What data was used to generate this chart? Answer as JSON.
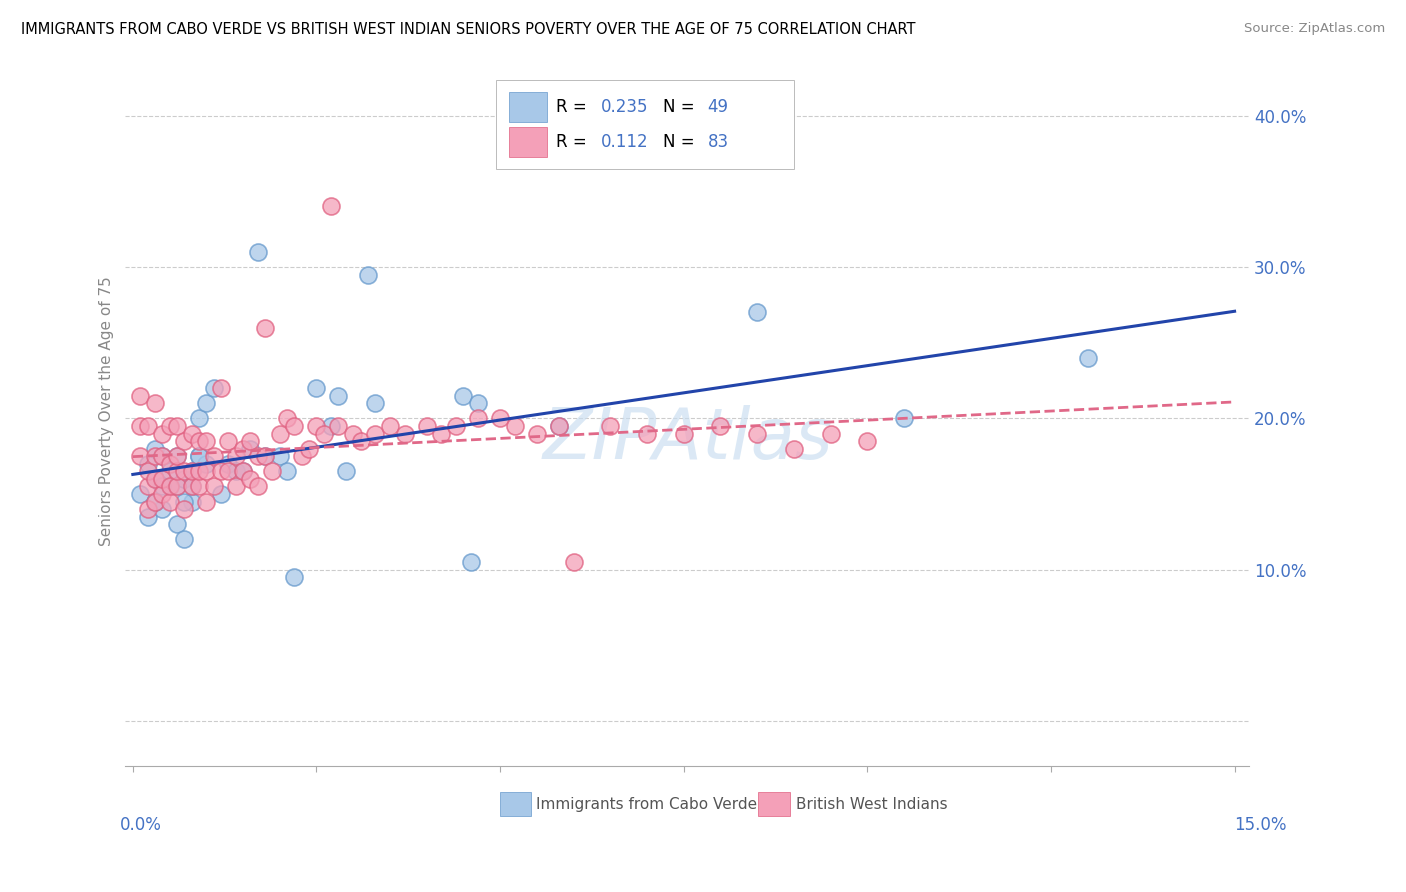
{
  "title": "IMMIGRANTS FROM CABO VERDE VS BRITISH WEST INDIAN SENIORS POVERTY OVER THE AGE OF 75 CORRELATION CHART",
  "source": "Source: ZipAtlas.com",
  "ylabel": "Seniors Poverty Over the Age of 75",
  "y_ticks": [
    0.0,
    0.1,
    0.2,
    0.3,
    0.4
  ],
  "y_tick_labels": [
    "",
    "10.0%",
    "20.0%",
    "30.0%",
    "40.0%"
  ],
  "watermark": "ZIPAtlas",
  "series1_color": "#a8c8e8",
  "series2_color": "#f4a0b8",
  "series1_edge": "#6699cc",
  "series2_edge": "#e06080",
  "trendline1_color": "#2244aa",
  "trendline2_color": "#e06888",
  "cabo_verde_x": [
    0.001,
    0.002,
    0.002,
    0.003,
    0.003,
    0.004,
    0.004,
    0.005,
    0.005,
    0.006,
    0.006,
    0.007,
    0.007,
    0.008,
    0.008,
    0.009,
    0.009,
    0.01,
    0.01,
    0.011,
    0.012,
    0.013,
    0.014,
    0.015,
    0.016,
    0.017,
    0.018,
    0.02,
    0.021,
    0.022,
    0.025,
    0.027,
    0.028,
    0.029,
    0.032,
    0.033,
    0.045,
    0.046,
    0.047,
    0.058,
    0.085,
    0.105,
    0.13,
    0.003,
    0.004,
    0.006,
    0.007,
    0.008,
    0.009
  ],
  "cabo_verde_y": [
    0.15,
    0.135,
    0.17,
    0.16,
    0.18,
    0.14,
    0.175,
    0.155,
    0.165,
    0.13,
    0.155,
    0.12,
    0.16,
    0.145,
    0.165,
    0.175,
    0.2,
    0.17,
    0.21,
    0.22,
    0.15,
    0.17,
    0.165,
    0.165,
    0.18,
    0.31,
    0.175,
    0.175,
    0.165,
    0.095,
    0.22,
    0.195,
    0.215,
    0.165,
    0.295,
    0.21,
    0.215,
    0.105,
    0.21,
    0.195,
    0.27,
    0.2,
    0.24,
    0.145,
    0.155,
    0.175,
    0.145,
    0.155,
    0.175
  ],
  "bwi_x": [
    0.001,
    0.001,
    0.001,
    0.002,
    0.002,
    0.002,
    0.002,
    0.003,
    0.003,
    0.003,
    0.003,
    0.004,
    0.004,
    0.004,
    0.004,
    0.005,
    0.005,
    0.005,
    0.005,
    0.006,
    0.006,
    0.006,
    0.006,
    0.007,
    0.007,
    0.007,
    0.008,
    0.008,
    0.008,
    0.009,
    0.009,
    0.009,
    0.01,
    0.01,
    0.01,
    0.011,
    0.011,
    0.012,
    0.012,
    0.013,
    0.013,
    0.014,
    0.014,
    0.015,
    0.015,
    0.016,
    0.016,
    0.017,
    0.017,
    0.018,
    0.018,
    0.019,
    0.02,
    0.021,
    0.022,
    0.023,
    0.024,
    0.025,
    0.026,
    0.027,
    0.028,
    0.03,
    0.031,
    0.033,
    0.035,
    0.037,
    0.04,
    0.042,
    0.044,
    0.047,
    0.05,
    0.052,
    0.055,
    0.058,
    0.06,
    0.065,
    0.07,
    0.075,
    0.08,
    0.085,
    0.09,
    0.095,
    0.1
  ],
  "bwi_y": [
    0.175,
    0.195,
    0.215,
    0.14,
    0.155,
    0.165,
    0.195,
    0.145,
    0.16,
    0.175,
    0.21,
    0.15,
    0.16,
    0.175,
    0.19,
    0.145,
    0.155,
    0.17,
    0.195,
    0.155,
    0.165,
    0.175,
    0.195,
    0.14,
    0.165,
    0.185,
    0.155,
    0.165,
    0.19,
    0.155,
    0.165,
    0.185,
    0.145,
    0.165,
    0.185,
    0.155,
    0.175,
    0.165,
    0.22,
    0.165,
    0.185,
    0.155,
    0.175,
    0.165,
    0.18,
    0.16,
    0.185,
    0.155,
    0.175,
    0.175,
    0.26,
    0.165,
    0.19,
    0.2,
    0.195,
    0.175,
    0.18,
    0.195,
    0.19,
    0.34,
    0.195,
    0.19,
    0.185,
    0.19,
    0.195,
    0.19,
    0.195,
    0.19,
    0.195,
    0.2,
    0.2,
    0.195,
    0.19,
    0.195,
    0.105,
    0.195,
    0.19,
    0.19,
    0.195,
    0.19,
    0.18,
    0.19,
    0.185
  ]
}
